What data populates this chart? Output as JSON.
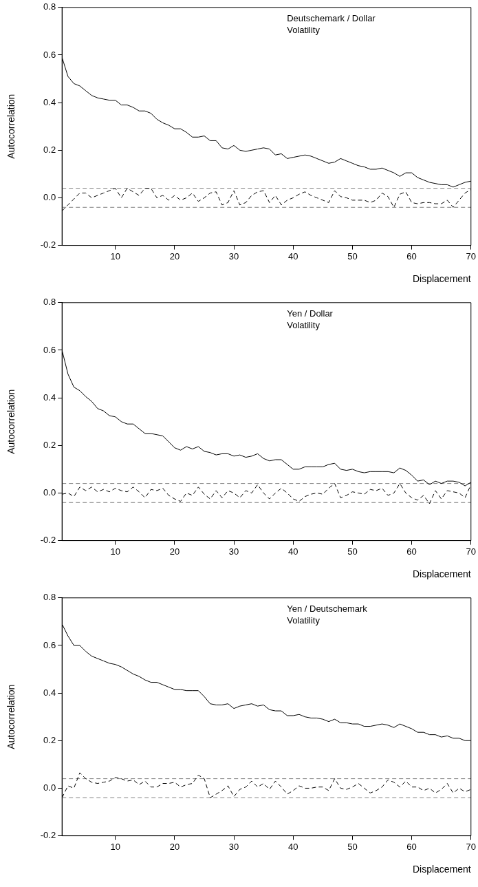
{
  "chart_data": [
    {
      "type": "line",
      "xlabel": "Displacement",
      "ylabel": "Autocorrelation",
      "annotations": [
        "Deutschemark / Dollar\nVolatility"
      ],
      "x": [
        1,
        2,
        3,
        4,
        5,
        6,
        7,
        8,
        9,
        10,
        11,
        12,
        13,
        14,
        15,
        16,
        17,
        18,
        19,
        20,
        21,
        22,
        23,
        24,
        25,
        26,
        27,
        28,
        29,
        30,
        31,
        32,
        33,
        34,
        35,
        36,
        37,
        38,
        39,
        40,
        41,
        42,
        43,
        44,
        45,
        46,
        47,
        48,
        49,
        50,
        51,
        52,
        53,
        54,
        55,
        56,
        57,
        58,
        59,
        60,
        61,
        62,
        63,
        64,
        65,
        66,
        67,
        68,
        69,
        70
      ],
      "series": [
        {
          "color": "#000000",
          "line_style": "solid",
          "values": [
            0.59,
            0.51,
            0.48,
            0.47,
            0.45,
            0.43,
            0.42,
            0.415,
            0.41,
            0.41,
            0.39,
            0.39,
            0.38,
            0.365,
            0.365,
            0.355,
            0.33,
            0.315,
            0.305,
            0.29,
            0.29,
            0.275,
            0.255,
            0.255,
            0.26,
            0.24,
            0.24,
            0.21,
            0.205,
            0.22,
            0.2,
            0.195,
            0.2,
            0.205,
            0.21,
            0.205,
            0.18,
            0.185,
            0.165,
            0.17,
            0.175,
            0.18,
            0.175,
            0.165,
            0.155,
            0.145,
            0.15,
            0.165,
            0.155,
            0.145,
            0.135,
            0.13,
            0.12,
            0.12,
            0.125,
            0.115,
            0.105,
            0.09,
            0.105,
            0.105,
            0.085,
            0.075,
            0.065,
            0.06,
            0.055,
            0.055,
            0.045,
            0.055,
            0.065,
            0.07
          ]
        },
        {
          "color": "#000000",
          "line_style": "dashed",
          "values": [
            -0.055,
            -0.03,
            -0.005,
            0.02,
            0.02,
            0.0,
            0.01,
            0.02,
            0.03,
            0.04,
            0.0,
            0.04,
            0.025,
            0.01,
            0.04,
            0.04,
            0.0,
            0.01,
            -0.01,
            0.01,
            -0.01,
            0.0,
            0.02,
            -0.015,
            0.0,
            0.02,
            0.025,
            -0.03,
            -0.02,
            0.03,
            -0.03,
            -0.02,
            0.01,
            0.025,
            0.03,
            -0.02,
            0.01,
            -0.03,
            -0.01,
            0.0,
            0.015,
            0.025,
            0.01,
            0.0,
            -0.01,
            -0.02,
            0.03,
            0.005,
            0.0,
            -0.01,
            -0.01,
            -0.01,
            -0.02,
            -0.01,
            0.02,
            0.005,
            -0.04,
            0.015,
            0.025,
            -0.02,
            -0.025,
            -0.02,
            -0.02,
            -0.025,
            -0.025,
            -0.01,
            -0.04,
            -0.01,
            0.02,
            0.035
          ]
        }
      ],
      "ref_lines": [
        {
          "axis": "y",
          "value": 0.04,
          "color": "#808080",
          "line_style": "dashed"
        },
        {
          "axis": "y",
          "value": -0.04,
          "color": "#808080",
          "line_style": "dashed"
        }
      ],
      "xlim": [
        1,
        70
      ],
      "xticks": [
        10,
        20,
        30,
        40,
        50,
        60,
        70
      ],
      "ylim": [
        -0.2,
        0.8
      ],
      "yticks": [
        {
          "value": -0.2,
          "label": "-0.2"
        },
        {
          "value": 0,
          "label": "0.0"
        },
        {
          "value": 0.2,
          "label": "0.2"
        },
        {
          "value": 0.4,
          "label": "0.4"
        },
        {
          "value": 0.6,
          "label": "0.6"
        },
        {
          "value": 0.8,
          "label": "0.8"
        }
      ],
      "grid": false,
      "legend": false,
      "marker": "none"
    },
    {
      "type": "line",
      "xlabel": "Displacement",
      "ylabel": "Autocorrelation",
      "annotations": [
        "Yen / Dollar\nVolatility"
      ],
      "x": [
        1,
        2,
        3,
        4,
        5,
        6,
        7,
        8,
        9,
        10,
        11,
        12,
        13,
        14,
        15,
        16,
        17,
        18,
        19,
        20,
        21,
        22,
        23,
        24,
        25,
        26,
        27,
        28,
        29,
        30,
        31,
        32,
        33,
        34,
        35,
        36,
        37,
        38,
        39,
        40,
        41,
        42,
        43,
        44,
        45,
        46,
        47,
        48,
        49,
        50,
        51,
        52,
        53,
        54,
        55,
        56,
        57,
        58,
        59,
        60,
        61,
        62,
        63,
        64,
        65,
        66,
        67,
        68,
        69,
        70
      ],
      "series": [
        {
          "color": "#000000",
          "line_style": "solid",
          "values": [
            0.6,
            0.5,
            0.445,
            0.43,
            0.405,
            0.385,
            0.355,
            0.345,
            0.325,
            0.32,
            0.3,
            0.29,
            0.29,
            0.27,
            0.25,
            0.25,
            0.245,
            0.24,
            0.215,
            0.19,
            0.18,
            0.195,
            0.185,
            0.195,
            0.175,
            0.17,
            0.16,
            0.165,
            0.165,
            0.155,
            0.16,
            0.15,
            0.155,
            0.165,
            0.145,
            0.135,
            0.14,
            0.14,
            0.12,
            0.1,
            0.1,
            0.11,
            0.11,
            0.11,
            0.11,
            0.12,
            0.125,
            0.1,
            0.095,
            0.1,
            0.09,
            0.085,
            0.09,
            0.09,
            0.09,
            0.09,
            0.085,
            0.105,
            0.095,
            0.075,
            0.05,
            0.055,
            0.035,
            0.05,
            0.04,
            0.05,
            0.05,
            0.045,
            0.03,
            0.045
          ]
        },
        {
          "color": "#000000",
          "line_style": "dashed",
          "values": [
            -0.005,
            0.0,
            -0.015,
            0.025,
            0.01,
            0.025,
            0.005,
            0.015,
            0.005,
            0.02,
            0.01,
            0.005,
            0.025,
            0.005,
            -0.02,
            0.015,
            0.01,
            0.02,
            -0.01,
            -0.025,
            -0.035,
            0.0,
            -0.01,
            0.025,
            -0.005,
            -0.025,
            0.01,
            -0.02,
            0.01,
            0.0,
            -0.02,
            0.01,
            0.0,
            0.035,
            0.0,
            -0.025,
            0.0,
            0.02,
            0.0,
            -0.025,
            -0.035,
            -0.015,
            -0.005,
            0.0,
            -0.005,
            0.02,
            0.04,
            -0.02,
            -0.01,
            0.005,
            0.0,
            -0.005,
            0.015,
            0.01,
            0.02,
            -0.01,
            0.0,
            0.04,
            0.0,
            -0.02,
            -0.03,
            -0.01,
            -0.045,
            0.01,
            -0.025,
            0.01,
            0.005,
            0.0,
            -0.02,
            0.035
          ]
        }
      ],
      "ref_lines": [
        {
          "axis": "y",
          "value": 0.04,
          "color": "#808080",
          "line_style": "dashed"
        },
        {
          "axis": "y",
          "value": -0.04,
          "color": "#808080",
          "line_style": "dashed"
        }
      ],
      "xlim": [
        1,
        70
      ],
      "xticks": [
        10,
        20,
        30,
        40,
        50,
        60,
        70
      ],
      "ylim": [
        -0.2,
        0.8
      ],
      "yticks": [
        {
          "value": -0.2,
          "label": "-0.2"
        },
        {
          "value": 0,
          "label": "0.0"
        },
        {
          "value": 0.2,
          "label": "0.2"
        },
        {
          "value": 0.4,
          "label": "0.4"
        },
        {
          "value": 0.6,
          "label": "0.6"
        },
        {
          "value": 0.8,
          "label": "0.8"
        }
      ],
      "grid": false,
      "legend": false,
      "marker": "none"
    },
    {
      "type": "line",
      "xlabel": "Displacement",
      "ylabel": "Autocorrelation",
      "annotations": [
        "Yen / Deutschemark\nVolatility"
      ],
      "x": [
        1,
        2,
        3,
        4,
        5,
        6,
        7,
        8,
        9,
        10,
        11,
        12,
        13,
        14,
        15,
        16,
        17,
        18,
        19,
        20,
        21,
        22,
        23,
        24,
        25,
        26,
        27,
        28,
        29,
        30,
        31,
        32,
        33,
        34,
        35,
        36,
        37,
        38,
        39,
        40,
        41,
        42,
        43,
        44,
        45,
        46,
        47,
        48,
        49,
        50,
        51,
        52,
        53,
        54,
        55,
        56,
        57,
        58,
        59,
        60,
        61,
        62,
        63,
        64,
        65,
        66,
        67,
        68,
        69,
        70
      ],
      "series": [
        {
          "color": "#000000",
          "line_style": "solid",
          "values": [
            0.69,
            0.64,
            0.6,
            0.6,
            0.575,
            0.555,
            0.545,
            0.535,
            0.525,
            0.52,
            0.51,
            0.495,
            0.48,
            0.47,
            0.455,
            0.445,
            0.445,
            0.435,
            0.425,
            0.415,
            0.415,
            0.41,
            0.41,
            0.41,
            0.385,
            0.355,
            0.35,
            0.35,
            0.355,
            0.335,
            0.345,
            0.35,
            0.355,
            0.345,
            0.35,
            0.33,
            0.325,
            0.325,
            0.305,
            0.305,
            0.31,
            0.3,
            0.295,
            0.295,
            0.29,
            0.28,
            0.29,
            0.275,
            0.275,
            0.27,
            0.27,
            0.26,
            0.26,
            0.265,
            0.27,
            0.265,
            0.255,
            0.27,
            0.26,
            0.25,
            0.235,
            0.235,
            0.225,
            0.225,
            0.215,
            0.22,
            0.21,
            0.21,
            0.2,
            0.2
          ]
        },
        {
          "color": "#000000",
          "line_style": "dashed",
          "values": [
            -0.04,
            0.01,
            0.0,
            0.065,
            0.04,
            0.025,
            0.02,
            0.025,
            0.03,
            0.045,
            0.04,
            0.03,
            0.035,
            0.015,
            0.03,
            0.005,
            0.005,
            0.02,
            0.02,
            0.025,
            0.005,
            0.015,
            0.02,
            0.055,
            0.04,
            -0.04,
            -0.025,
            -0.01,
            0.01,
            -0.035,
            -0.005,
            0.005,
            0.03,
            0.005,
            0.02,
            -0.005,
            0.03,
            0.005,
            -0.025,
            -0.01,
            0.01,
            0.0,
            0.0,
            0.005,
            0.005,
            -0.01,
            0.04,
            0.0,
            -0.005,
            0.005,
            0.02,
            0.0,
            -0.02,
            -0.01,
            0.005,
            0.035,
            0.025,
            0.005,
            0.03,
            0.005,
            0.005,
            -0.01,
            0.0,
            -0.02,
            -0.005,
            0.02,
            -0.02,
            0.0,
            -0.015,
            -0.005
          ]
        }
      ],
      "ref_lines": [
        {
          "axis": "y",
          "value": 0.04,
          "color": "#808080",
          "line_style": "dashed"
        },
        {
          "axis": "y",
          "value": -0.04,
          "color": "#808080",
          "line_style": "dashed"
        }
      ],
      "xlim": [
        1,
        70
      ],
      "xticks": [
        10,
        20,
        30,
        40,
        50,
        60,
        70
      ],
      "ylim": [
        -0.2,
        0.8
      ],
      "yticks": [
        {
          "value": -0.2,
          "label": "-0.2"
        },
        {
          "value": 0,
          "label": "0.0"
        },
        {
          "value": 0.2,
          "label": "0.2"
        },
        {
          "value": 0.4,
          "label": "0.4"
        },
        {
          "value": 0.6,
          "label": "0.6"
        },
        {
          "value": 0.8,
          "label": "0.8"
        }
      ],
      "grid": false,
      "legend": false,
      "marker": "none"
    }
  ]
}
